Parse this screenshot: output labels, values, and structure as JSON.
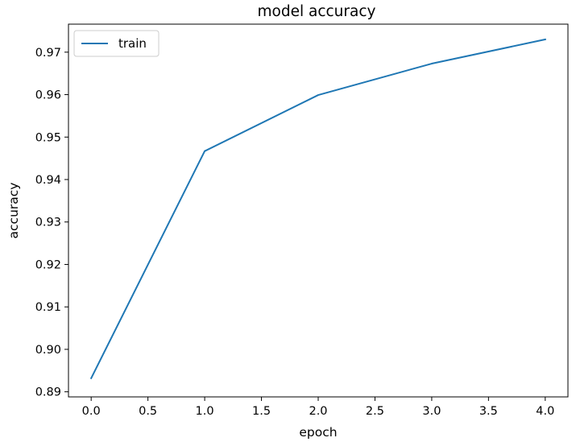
{
  "chart_data": {
    "type": "line",
    "title": "model accuracy",
    "xlabel": "epoch",
    "ylabel": "accuracy",
    "x": [
      0,
      1,
      2,
      3,
      4
    ],
    "series": [
      {
        "name": "train",
        "color": "#1f77b4",
        "values": [
          0.8932,
          0.9467,
          0.9599,
          0.9673,
          0.973
        ]
      }
    ],
    "xlim": [
      -0.2,
      4.2
    ],
    "ylim": [
      0.8888,
      0.9766
    ],
    "xticks": [
      0.0,
      0.5,
      1.0,
      1.5,
      2.0,
      2.5,
      3.0,
      3.5,
      4.0
    ],
    "xtick_labels": [
      "0.0",
      "0.5",
      "1.0",
      "1.5",
      "2.0",
      "2.5",
      "3.0",
      "3.5",
      "4.0"
    ],
    "yticks": [
      0.89,
      0.9,
      0.91,
      0.92,
      0.93,
      0.94,
      0.95,
      0.96,
      0.97
    ],
    "ytick_labels": [
      "0.89",
      "0.90",
      "0.91",
      "0.92",
      "0.93",
      "0.94",
      "0.95",
      "0.96",
      "0.97"
    ],
    "grid": false,
    "legend_position": "upper-left"
  }
}
